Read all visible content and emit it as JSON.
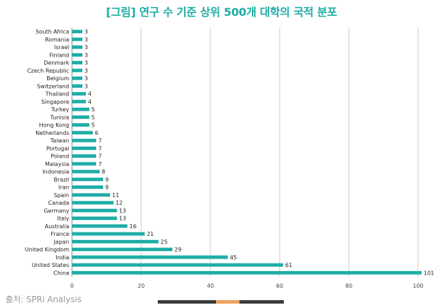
{
  "title": "[그림] 연구 수 기준 상위 500개 대학의 국적 분포",
  "source": "출처: SPRi Analysis",
  "colors": {
    "title": "#1fada6",
    "bar": "#1fada6",
    "grid": "#c8c8c8",
    "axis": "#8a8a8a",
    "label": "#222222",
    "footer_dark": "#3a3a3a",
    "footer_accent": "#f0a060"
  },
  "chart_data": {
    "type": "bar",
    "orientation": "horizontal",
    "categories": [
      "South Africa",
      "Romania",
      "Israel",
      "Finland",
      "Denmark",
      "Czech Republic",
      "Belgium",
      "Switzerland",
      "Thailand",
      "Singapore",
      "Turkey",
      "Tunisia",
      "Hong Kong",
      "Netherlands",
      "Taiwan",
      "Portugal",
      "Poland",
      "Malaysia",
      "Indonesia",
      "Brazil",
      "Iran",
      "Spain",
      "Canada",
      "Germany",
      "Italy",
      "Australia",
      "France",
      "Japan",
      "United Kingdom",
      "India",
      "United States",
      "China"
    ],
    "values": [
      3,
      3,
      3,
      3,
      3,
      3,
      3,
      3,
      4,
      4,
      5,
      5,
      5,
      6,
      7,
      7,
      7,
      7,
      8,
      9,
      9,
      11,
      12,
      13,
      13,
      16,
      21,
      25,
      29,
      45,
      61,
      101
    ],
    "xlim": [
      0,
      100
    ],
    "xticks": [
      0,
      20,
      40,
      60,
      80,
      100
    ],
    "grid": true,
    "data_labels": true
  }
}
